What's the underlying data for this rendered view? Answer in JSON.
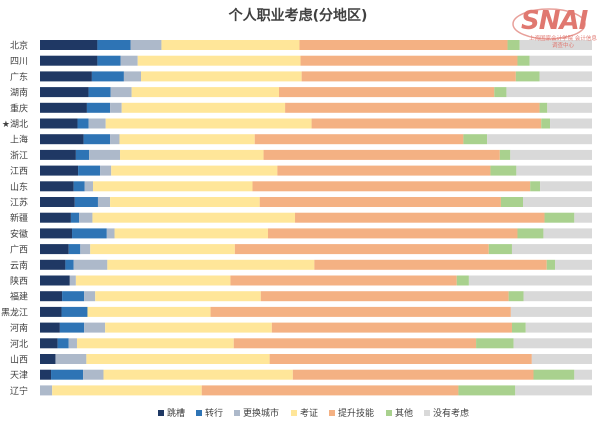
{
  "chart_data": {
    "type": "bar",
    "orientation": "horizontal",
    "stacked": true,
    "normalized": true,
    "title": "个人职业考虑(分地区)",
    "categories": [
      "北京",
      "四川",
      "广东",
      "湖南",
      "重庆",
      "★湖北",
      "上海",
      "浙江",
      "江西",
      "山东",
      "江苏",
      "新疆",
      "安徽",
      "广西",
      "云南",
      "陕西",
      "福建",
      "黑龙江",
      "河南",
      "河北",
      "山西",
      "天津",
      "辽宁"
    ],
    "xlim": [
      0,
      100
    ],
    "grid": false,
    "legend": "bottom",
    "series": [
      {
        "name": "跳槽",
        "color": "#1f3864",
        "values": [
          10.4,
          10.4,
          9.4,
          8.8,
          8.5,
          6.8,
          7.9,
          6.5,
          6.9,
          6.1,
          6.3,
          5.6,
          5.8,
          5.2,
          4.6,
          5.4,
          4.0,
          3.9,
          3.6,
          3.2,
          2.8,
          2.0,
          0.0
        ]
      },
      {
        "name": "转行",
        "color": "#2e74b5",
        "values": [
          6.0,
          4.2,
          5.8,
          4.0,
          4.2,
          2.0,
          4.8,
          2.4,
          4.0,
          2.0,
          4.2,
          1.5,
          6.3,
          2.1,
          1.5,
          0.0,
          4.0,
          4.7,
          4.4,
          2.0,
          0.0,
          5.8,
          0.0
        ]
      },
      {
        "name": "更换城市",
        "color": "#adb9ca",
        "values": [
          5.6,
          3.1,
          3.1,
          3.8,
          2.1,
          3.1,
          1.7,
          5.6,
          2.0,
          1.5,
          2.2,
          2.4,
          1.4,
          1.8,
          6.1,
          1.1,
          2.0,
          0.0,
          3.8,
          1.5,
          5.6,
          3.7,
          2.2
        ]
      },
      {
        "name": "考证",
        "color": "#ffe699",
        "values": [
          25.0,
          29.5,
          29.1,
          26.7,
          29.6,
          37.3,
          24.5,
          26.0,
          30.1,
          28.9,
          27.1,
          36.7,
          27.8,
          26.2,
          37.5,
          28.0,
          30.0,
          22.3,
          30.2,
          28.4,
          33.2,
          34.3,
          27.1
        ]
      },
      {
        "name": "提升技能",
        "color": "#f4b183",
        "values": [
          37.7,
          39.3,
          38.8,
          39.0,
          46.1,
          41.6,
          37.8,
          42.8,
          38.6,
          50.3,
          43.7,
          45.2,
          45.2,
          46.0,
          42.1,
          41.0,
          44.9,
          54.4,
          43.5,
          43.9,
          47.5,
          43.6,
          46.5
        ]
      },
      {
        "name": "其他",
        "color": "#a9d18e",
        "values": [
          2.2,
          2.2,
          4.3,
          2.2,
          1.4,
          1.6,
          4.3,
          1.9,
          4.7,
          1.8,
          4.0,
          5.4,
          4.7,
          4.2,
          1.5,
          2.2,
          2.7,
          0.0,
          2.5,
          6.8,
          0.0,
          7.4,
          10.3
        ]
      },
      {
        "name": "没有考虑",
        "color": "#d9d9d9",
        "values": [
          13.1,
          11.3,
          9.5,
          15.5,
          8.1,
          7.6,
          19.0,
          14.8,
          13.7,
          9.4,
          12.5,
          3.2,
          8.8,
          14.5,
          6.7,
          22.3,
          12.4,
          14.7,
          12.0,
          14.2,
          10.9,
          3.2,
          13.9
        ]
      }
    ]
  },
  "logo": {
    "text": "SNAI",
    "subtitle": "上海国家会计学院 会计信息调查中心"
  }
}
